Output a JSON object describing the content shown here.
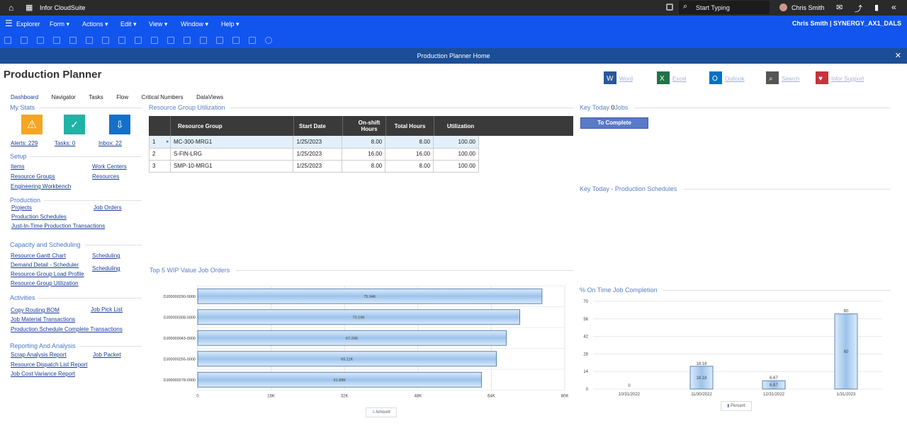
{
  "topbar": {
    "app_name": "Infor CloudSuite",
    "search_placeholder": "Start Typing",
    "user_name": "Chris Smith"
  },
  "menubar": {
    "explorer": "Explorer",
    "menus": [
      "Form",
      "Actions",
      "Edit",
      "View",
      "Window",
      "Help"
    ],
    "user_site": "Chris Smith | SYNERGY_AX1_DALS"
  },
  "titlebar": {
    "title": "Production Planner Home"
  },
  "page": {
    "title": "Production Planner"
  },
  "tabs": [
    "Dashboard",
    "Navigator",
    "Tasks",
    "Flow",
    "Critical Numbers",
    "DataViews"
  ],
  "office_buttons": [
    "Word",
    "Excel",
    "Outlook",
    "Search",
    "Infor Support"
  ],
  "sidebar": {
    "my_stats": "My Stats",
    "stats": [
      {
        "label": "Alerts: 229",
        "color": "#f5a623"
      },
      {
        "label": "Tasks: 0",
        "color": "#1fb3a6"
      },
      {
        "label": "Inbox: 22",
        "color": "#1570c9"
      }
    ],
    "setup": {
      "title": "Setup",
      "left": [
        "Items",
        "Resource Groups",
        "Engineering Workbench"
      ],
      "right": [
        "Work Centers",
        "Resources"
      ]
    },
    "production": {
      "title": "Production",
      "left": [
        "Projects",
        "Production Schedules",
        "Just-In-Time Production Transactions"
      ],
      "right": [
        "Job Orders"
      ]
    },
    "capacity": {
      "title": "Capacity and Scheduling",
      "left": [
        "Resource Gantt Chart",
        "Demand Detail - Scheduler",
        "Resource Group Load Profile",
        "Resource Group Utilization"
      ],
      "right": [
        "Scheduling",
        "Scheduling"
      ]
    },
    "activities": {
      "title": "Activities",
      "left": [
        "Copy Routing BOM",
        "Job Material Transactions",
        "Production Schedule Complete Transactions"
      ],
      "right": [
        "Job Pick List"
      ]
    },
    "reporting": {
      "title": "Reporting And Analysis",
      "left": [
        "Scrap Analysis Report",
        "Resource Dispatch List Report",
        "Job Cost Variance Report"
      ],
      "right": [
        "Job Packet"
      ]
    }
  },
  "resource_util": {
    "title": "Resource Group Utilization",
    "columns": [
      "Resource Group",
      "Start Date",
      "On-shift Hours",
      "Total Hours",
      "Utilization"
    ],
    "rows": [
      {
        "num": "1",
        "group": "MC-300-MRG1",
        "date": "1/25/2023",
        "onshift": "8.00",
        "total": "8.00",
        "util": "100.00"
      },
      {
        "num": "2",
        "group": "S-FIN-LRG",
        "date": "1/25/2023",
        "onshift": "16.00",
        "total": "16.00",
        "util": "100.00"
      },
      {
        "num": "3",
        "group": "SMP-10-MRG1",
        "date": "1/25/2023",
        "onshift": "8.00",
        "total": "8.00",
        "util": "100.00"
      }
    ]
  },
  "key_today_jobs": {
    "title_prefix": "Key Today ",
    "count": "0",
    "title_suffix": "Jobs",
    "button": "To Complete"
  },
  "key_today_sched": {
    "title": "Key Today - Production Schedules"
  },
  "chart_data": [
    {
      "type": "bar",
      "orientation": "horizontal",
      "title": "Top 5 WIP Value Job Orders",
      "categories": [
        "DJ00000290-0000",
        "DJ00000308-0000",
        "DJ00000043-0000",
        "DJ00000255-0000",
        "DJ00000278-0000"
      ],
      "values": [
        75040,
        70190,
        67260,
        65110,
        61880
      ],
      "value_labels": [
        "75.04K",
        "70.19K",
        "67.26K",
        "65.11K",
        "61.88K"
      ],
      "xticks": [
        "0",
        "16K",
        "32K",
        "48K",
        "64K",
        "80K"
      ],
      "xlim": [
        0,
        80000
      ],
      "legend": "Amount",
      "grid": true
    },
    {
      "type": "bar",
      "title": "% On Time Job Completion",
      "categories": [
        "10/31/2022",
        "11/30/2022",
        "12/31/2022",
        "1/31/2023"
      ],
      "values": [
        0,
        18.18,
        6.67,
        60
      ],
      "value_labels": [
        "0",
        "18.18",
        "6.67",
        "60"
      ],
      "yticks": [
        "0",
        "14",
        "28",
        "42",
        "56",
        "70"
      ],
      "ylim": [
        0,
        70
      ],
      "legend": "Percent",
      "grid": true
    }
  ],
  "colors": {
    "topbar": "#2a2a2a",
    "menubar": "#1155ee",
    "titlebar": "#1b4e96",
    "grid_header": "#3a3a3a",
    "bar_fill": "#b7d4f2",
    "bar_stroke": "#3a6ea5"
  }
}
